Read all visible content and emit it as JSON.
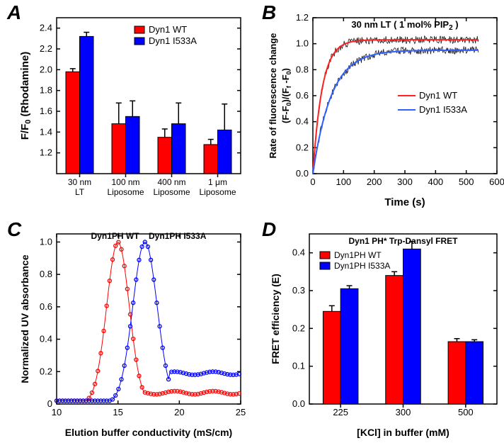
{
  "colors": {
    "red": "#ff0000",
    "blue": "#0000ff",
    "red_line": "#ff2020",
    "blue_line": "#3060ff",
    "black": "#000000",
    "white": "#ffffff"
  },
  "panels": {
    "A": {
      "label": "A",
      "type": "bar",
      "ylabel": "F/F₀ (Rhodamine)",
      "categories": [
        "30 nm\nLT",
        "100 nm\nLiposome",
        "400 nm\nLiposome",
        "1 μm\nLiposome"
      ],
      "cat_short_top": [
        "30 nm",
        "100 nm",
        "400 nm",
        "1 μm"
      ],
      "cat_short_bot": [
        "LT",
        "Liposome",
        "Liposome",
        "Liposome"
      ],
      "legend": [
        "Dyn1 WT",
        "Dyn1 I533A"
      ],
      "series": {
        "wt": {
          "values": [
            1.98,
            1.48,
            1.35,
            1.28
          ],
          "err": [
            0.03,
            0.2,
            0.08,
            0.05
          ],
          "color": "#ff0000"
        },
        "i533a": {
          "values": [
            2.32,
            1.55,
            1.48,
            1.42
          ],
          "err": [
            0.04,
            0.15,
            0.2,
            0.25
          ],
          "color": "#0000ff"
        }
      },
      "ylim": [
        1.0,
        2.5
      ],
      "yticks": [
        1.2,
        1.4,
        1.6,
        1.8,
        2.0,
        2.2,
        2.4
      ],
      "bar_width": 0.35
    },
    "B": {
      "label": "B",
      "type": "line",
      "title": "30 nm LT ( 1 mol% PIP₂ )",
      "xlabel": "Time (s)",
      "ylabel": "Rate of fluorescence change\n(F-F₀)/(Ff -F₀)",
      "xlim": [
        0,
        600
      ],
      "xticks": [
        0,
        100,
        200,
        300,
        400,
        500,
        600
      ],
      "ylim": [
        0,
        1.2
      ],
      "yticks": [
        0.0,
        0.2,
        0.4,
        0.6,
        0.8,
        1.0,
        1.2
      ],
      "legend": [
        "Dyn1 WT",
        "Dyn1 I533A"
      ],
      "series": {
        "wt": {
          "color": "#ff2020",
          "tau": 30,
          "plateau": 1.03
        },
        "i533a": {
          "color": "#3060ff",
          "tau": 60,
          "plateau": 0.95
        }
      },
      "noise_color": "#000000"
    },
    "C": {
      "label": "C",
      "type": "line",
      "xlabel": "Elution buffer conductivity (mS/cm)",
      "ylabel": "Normalized UV absorbance",
      "xlim": [
        10,
        25
      ],
      "xticks": [
        10,
        15,
        20,
        25
      ],
      "ylim": [
        0,
        1.05
      ],
      "yticks": [
        0,
        0.2,
        0.4,
        0.6,
        0.8,
        1.0
      ],
      "annot": {
        "wt": "Dyn1PH WT",
        "mut": "Dyn1PH I533A"
      },
      "series": {
        "wt": {
          "color": "#ff0000",
          "peak_x": 15.0,
          "baseline": 0.02,
          "tail": 0.07
        },
        "mut": {
          "color": "#0000ff",
          "peak_x": 17.2,
          "baseline": 0.02,
          "tail": 0.19
        }
      }
    },
    "D": {
      "label": "D",
      "type": "bar",
      "title": "Dyn1 PH* Trp-Dansyl FRET",
      "xlabel": "[KCl] in buffer (mM)",
      "ylabel": "FRET efficiency (E)",
      "categories": [
        "225",
        "300",
        "500"
      ],
      "legend": [
        "Dyn1PH WT",
        "Dyn1PH I533A"
      ],
      "series": {
        "wt": {
          "values": [
            0.245,
            0.34,
            0.165
          ],
          "err": [
            0.015,
            0.01,
            0.008
          ],
          "color": "#ff0000"
        },
        "mut": {
          "values": [
            0.305,
            0.41,
            0.165
          ],
          "err": [
            0.008,
            0.02,
            0.005
          ],
          "color": "#0000ff"
        }
      },
      "ylim": [
        0,
        0.45
      ],
      "yticks": [
        0.0,
        0.1,
        0.2,
        0.3,
        0.4
      ],
      "bar_width": 0.35
    }
  }
}
